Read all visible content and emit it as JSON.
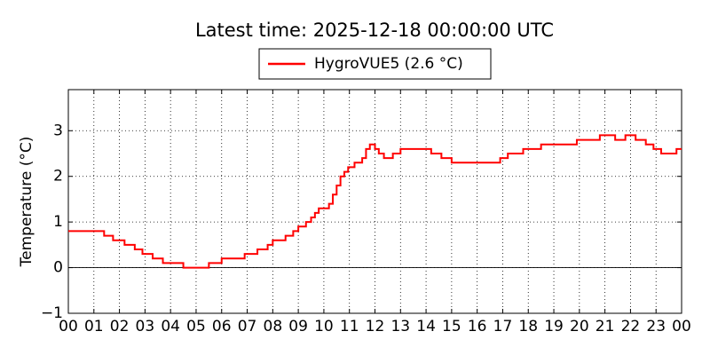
{
  "chart_data": {
    "type": "line",
    "title": "Latest time: 2025-12-18 00:00:00 UTC",
    "y_label": "Temperature (°C)",
    "legend": "top",
    "grid": true,
    "zero_line": true,
    "xlim": [
      0,
      24
    ],
    "ylim": [
      -1,
      3.9
    ],
    "xticks": [
      {
        "value": 0,
        "label": "00"
      },
      {
        "value": 1,
        "label": "01"
      },
      {
        "value": 2,
        "label": "02"
      },
      {
        "value": 3,
        "label": "03"
      },
      {
        "value": 4,
        "label": "04"
      },
      {
        "value": 5,
        "label": "05"
      },
      {
        "value": 6,
        "label": "06"
      },
      {
        "value": 7,
        "label": "07"
      },
      {
        "value": 8,
        "label": "08"
      },
      {
        "value": 9,
        "label": "09"
      },
      10,
      11,
      12,
      13,
      14,
      15,
      16,
      17,
      18,
      19,
      20,
      21,
      22,
      23,
      {
        "value": 24,
        "label": "00"
      }
    ],
    "yticks": [
      {
        "value": -1,
        "label": "−1"
      },
      0,
      1,
      2,
      3
    ],
    "x": [
      0,
      1.4,
      1.4,
      1.75,
      1.75,
      2.2,
      2.2,
      2.6,
      2.6,
      2.9,
      2.9,
      3.3,
      3.3,
      3.7,
      3.7,
      4.5,
      4.5,
      5.5,
      5.5,
      6,
      6,
      6.9,
      6.9,
      7.4,
      7.4,
      7.8,
      7.8,
      8,
      8,
      8.5,
      8.5,
      8.8,
      8.8,
      9,
      9,
      9.3,
      9.3,
      9.5,
      9.5,
      9.65,
      9.65,
      9.8,
      9.8,
      10.2,
      10.2,
      10.35,
      10.35,
      10.5,
      10.5,
      10.65,
      10.65,
      10.8,
      10.8,
      10.95,
      10.95,
      11.2,
      11.2,
      11.5,
      11.5,
      11.65,
      11.65,
      11.8,
      11.8,
      12,
      12,
      12.15,
      12.15,
      12.35,
      12.35,
      12.7,
      12.7,
      13,
      13,
      14.2,
      14.2,
      14.6,
      14.6,
      15,
      15,
      16.9,
      16.9,
      17.2,
      17.2,
      17.8,
      17.8,
      18.5,
      18.5,
      19.9,
      19.9,
      20.8,
      20.8,
      21.4,
      21.4,
      21.8,
      21.8,
      22.2,
      22.2,
      22.6,
      22.6,
      22.9,
      22.9,
      23.2,
      23.2,
      23.8,
      23.8,
      24
    ],
    "series": [
      {
        "name": "HygroVUE5 (2.6 °C)",
        "color": "#ff0000",
        "values": [
          0.8,
          0.8,
          0.7,
          0.7,
          0.6,
          0.6,
          0.5,
          0.5,
          0.4,
          0.4,
          0.3,
          0.3,
          0.2,
          0.2,
          0.1,
          0.1,
          0,
          0,
          0.1,
          0.1,
          0.2,
          0.2,
          0.3,
          0.3,
          0.4,
          0.4,
          0.5,
          0.5,
          0.6,
          0.6,
          0.7,
          0.7,
          0.8,
          0.8,
          0.9,
          0.9,
          1.0,
          1.0,
          1.1,
          1.1,
          1.2,
          1.2,
          1.3,
          1.3,
          1.4,
          1.4,
          1.6,
          1.6,
          1.8,
          1.8,
          2.0,
          2.0,
          2.1,
          2.1,
          2.2,
          2.2,
          2.3,
          2.3,
          2.4,
          2.4,
          2.6,
          2.6,
          2.7,
          2.7,
          2.6,
          2.6,
          2.5,
          2.5,
          2.4,
          2.4,
          2.5,
          2.5,
          2.6,
          2.6,
          2.5,
          2.5,
          2.4,
          2.4,
          2.3,
          2.3,
          2.4,
          2.4,
          2.5,
          2.5,
          2.6,
          2.6,
          2.7,
          2.7,
          2.8,
          2.8,
          2.9,
          2.9,
          2.8,
          2.8,
          2.9,
          2.9,
          2.8,
          2.8,
          2.7,
          2.7,
          2.6,
          2.6,
          2.5,
          2.5,
          2.6,
          2.6
        ]
      }
    ]
  }
}
